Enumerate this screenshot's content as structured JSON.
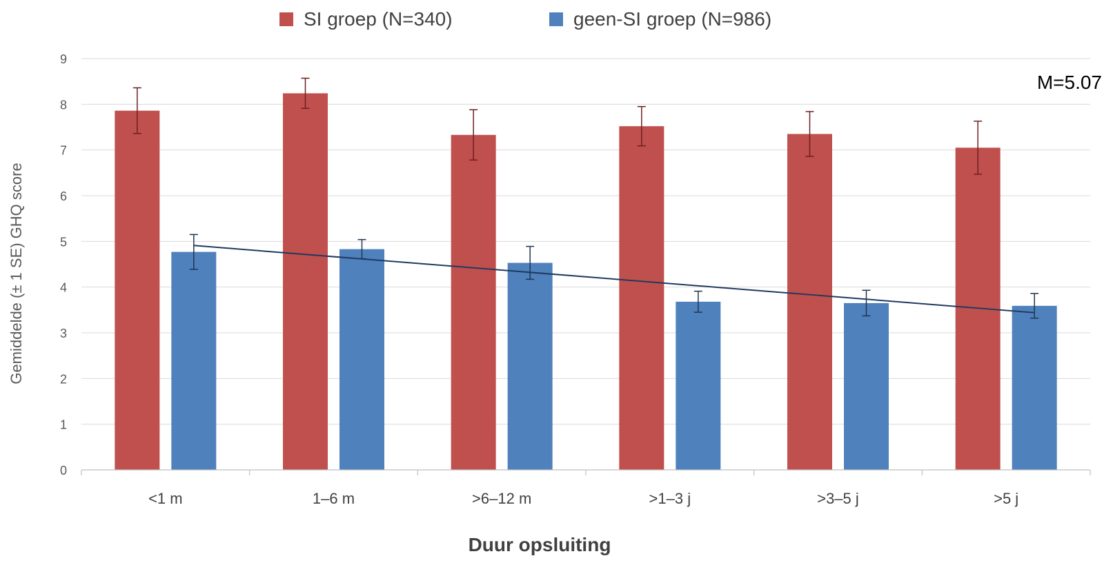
{
  "chart_data": {
    "type": "bar",
    "title": "",
    "xlabel": "Duur opsluiting",
    "ylabel": "Gemiddelde (± 1 SE) GHQ score",
    "ylim": [
      0,
      9
    ],
    "yticks": [
      "0",
      "1",
      "2",
      "3",
      "4",
      "5",
      "6",
      "7",
      "8",
      "9"
    ],
    "grid": true,
    "legend_position": "top-center",
    "categories": [
      "<1 m",
      "1–6 m",
      ">6–12 m",
      ">1–3 j",
      ">3–5 j",
      ">5 j"
    ],
    "series": [
      {
        "name": "SI groep (N=340)",
        "color": "#C0504D",
        "errorbar_color": "#6B1F1F",
        "values": [
          7.86,
          8.24,
          7.33,
          7.52,
          7.35,
          7.05
        ],
        "se": [
          0.5,
          0.33,
          0.55,
          0.43,
          0.49,
          0.58
        ]
      },
      {
        "name": "geen-SI groep (N=986)",
        "color": "#4F81BD",
        "errorbar_color": "#1F3550",
        "values": [
          4.77,
          4.83,
          4.53,
          3.68,
          3.65,
          3.59
        ],
        "se": [
          0.38,
          0.21,
          0.36,
          0.23,
          0.28,
          0.27
        ]
      }
    ],
    "trendline": {
      "series": "geen-SI groep (N=986)",
      "start": 4.91,
      "end": 3.44,
      "color": "#1F3A5F"
    },
    "annotation": "M=5.07"
  }
}
